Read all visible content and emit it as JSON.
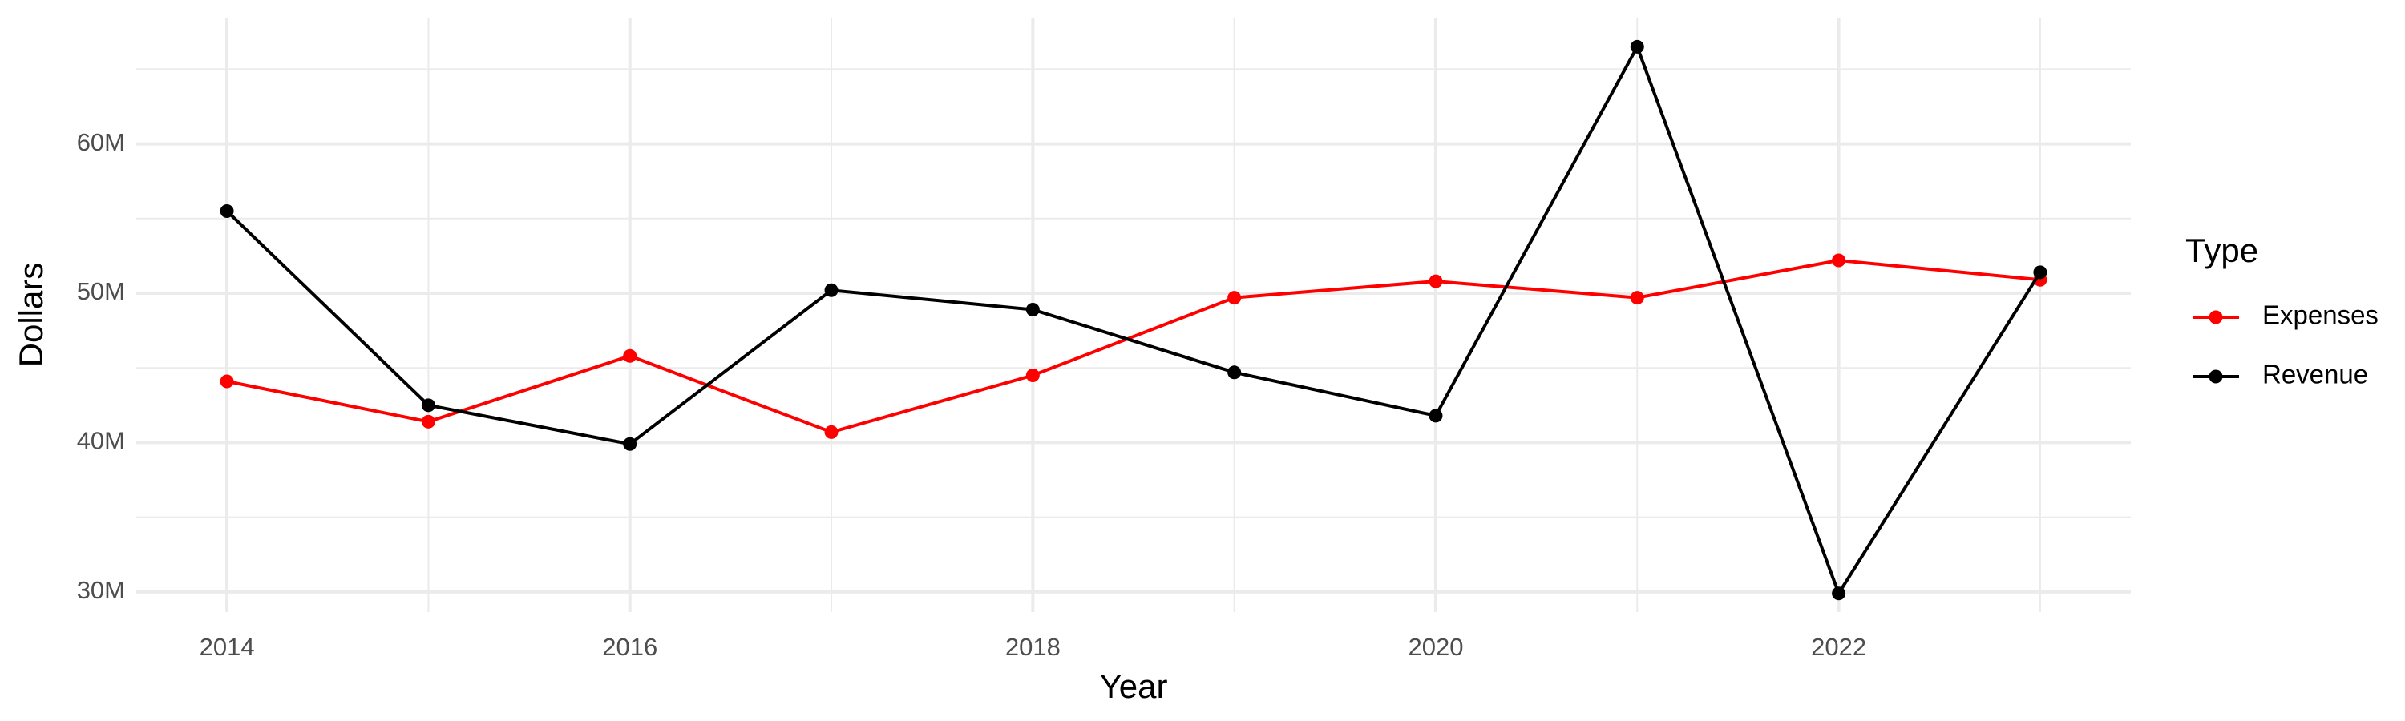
{
  "chart_data": {
    "type": "line",
    "x_label": "Year",
    "y_label": "Dollars",
    "legend_title": "Type",
    "legend_position": "right",
    "grid": true,
    "x": [
      2014,
      2015,
      2016,
      2017,
      2018,
      2019,
      2020,
      2021,
      2022,
      2023
    ],
    "series": [
      {
        "name": "Expenses",
        "color": "#ff0000",
        "values": [
          44100000,
          41400000,
          45800000,
          40700000,
          44500000,
          49700000,
          50800000,
          49700000,
          52200000,
          50900000
        ]
      },
      {
        "name": "Revenue",
        "color": "#000000",
        "values": [
          55500000,
          42500000,
          39900000,
          50200000,
          48900000,
          44700000,
          41800000,
          66500000,
          29900000,
          51400000
        ]
      }
    ],
    "xlim": [
      2013.55,
      2023.45
    ],
    "xticks": [
      2014,
      2016,
      2018,
      2020,
      2022
    ],
    "ylim": [
      28650000,
      68400000
    ],
    "yticks": [
      {
        "value": 30000000,
        "label": "30M"
      },
      {
        "value": 40000000,
        "label": "40M"
      },
      {
        "value": 50000000,
        "label": "50M"
      },
      {
        "value": 60000000,
        "label": "60M"
      }
    ]
  }
}
